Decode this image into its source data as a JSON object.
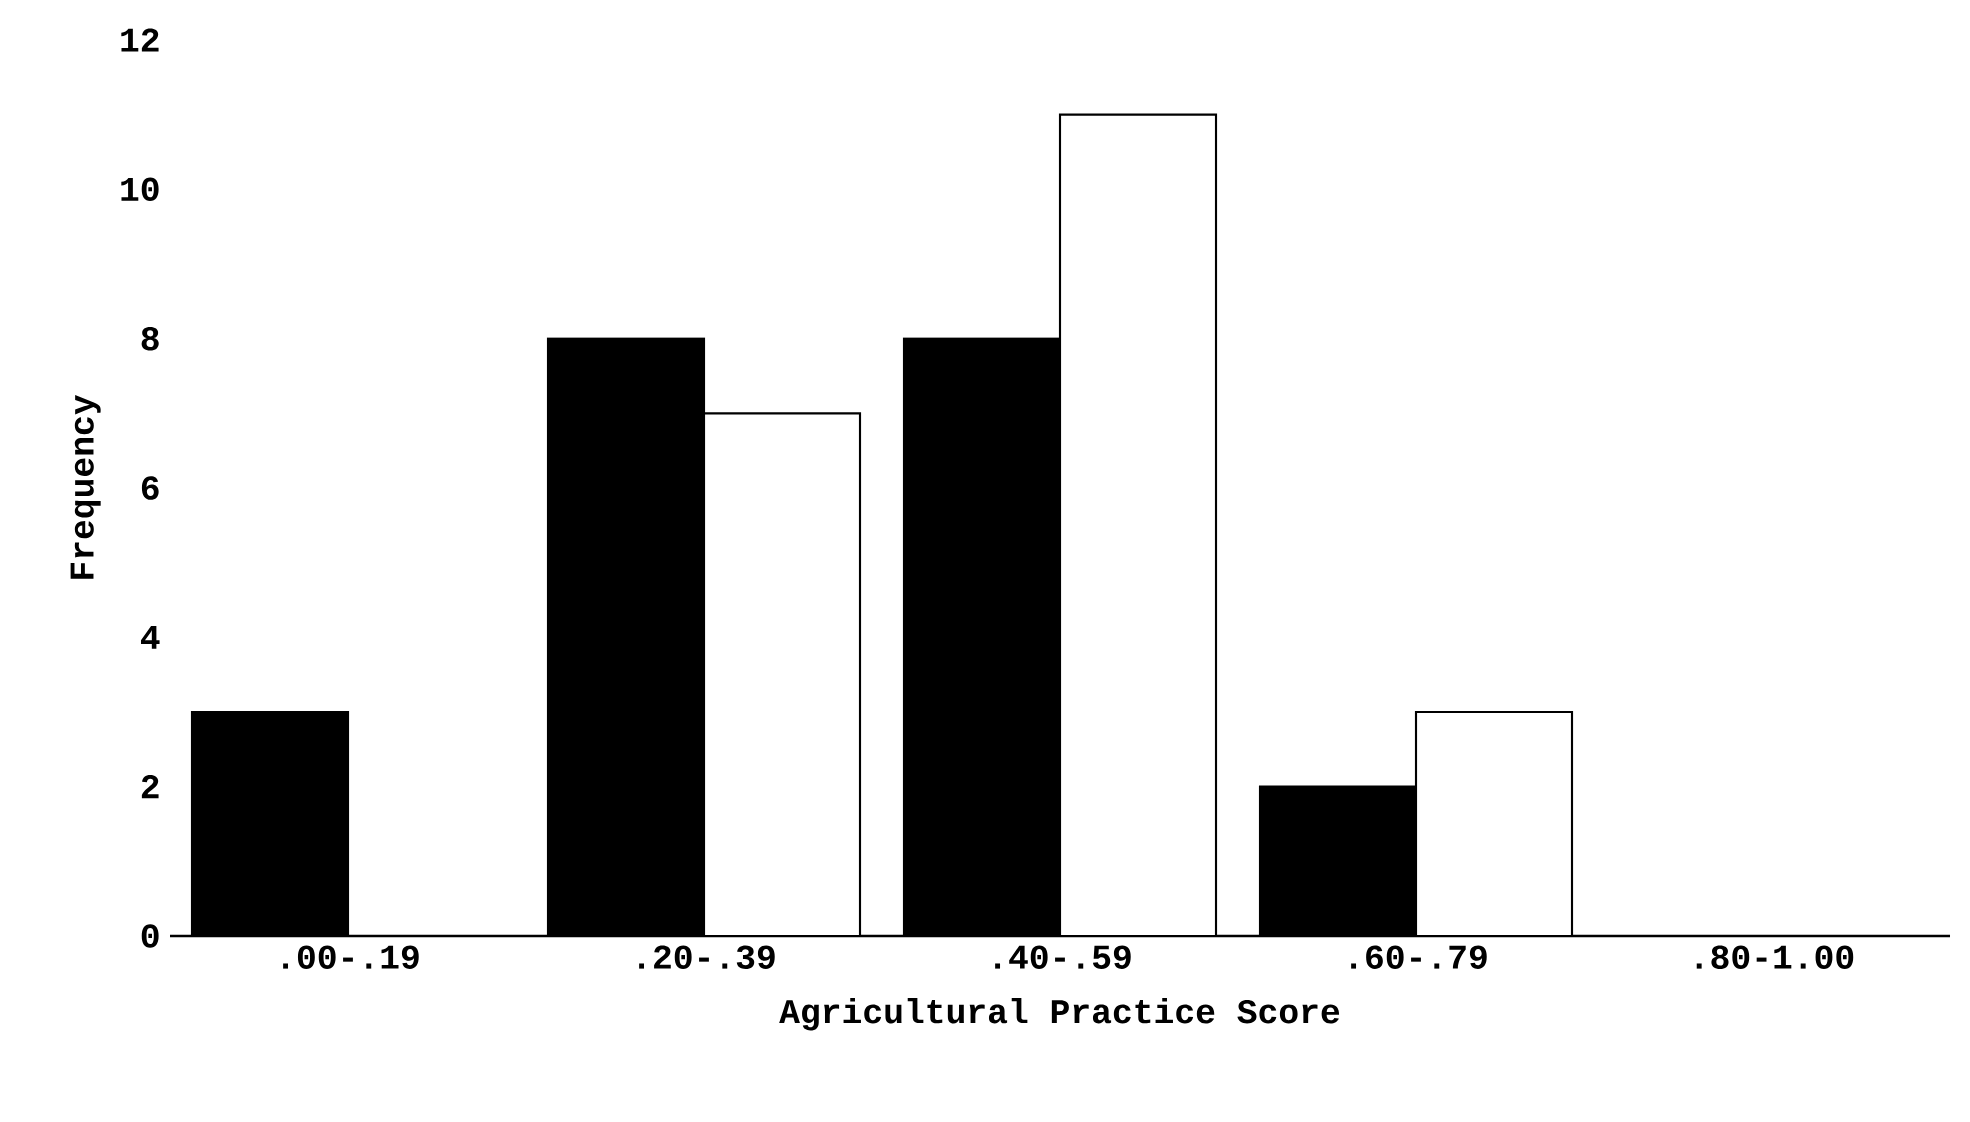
{
  "chart_data": {
    "type": "bar",
    "xlabel": "Agricultural Practice Score",
    "ylabel": "Frequency",
    "categories": [
      ".00-.19",
      ".20-.39",
      ".40-.59",
      ".60-.79",
      ".80-1.00"
    ],
    "series": [
      {
        "color": "#000000",
        "values": [
          3,
          8,
          8,
          2,
          0
        ]
      },
      {
        "color": "#ffffff",
        "values": [
          0,
          7,
          11,
          3,
          0
        ]
      }
    ],
    "ylim": [
      0,
      12
    ],
    "yticks": [
      0,
      2,
      4,
      6,
      8,
      10,
      12
    ],
    "grid": false
  }
}
